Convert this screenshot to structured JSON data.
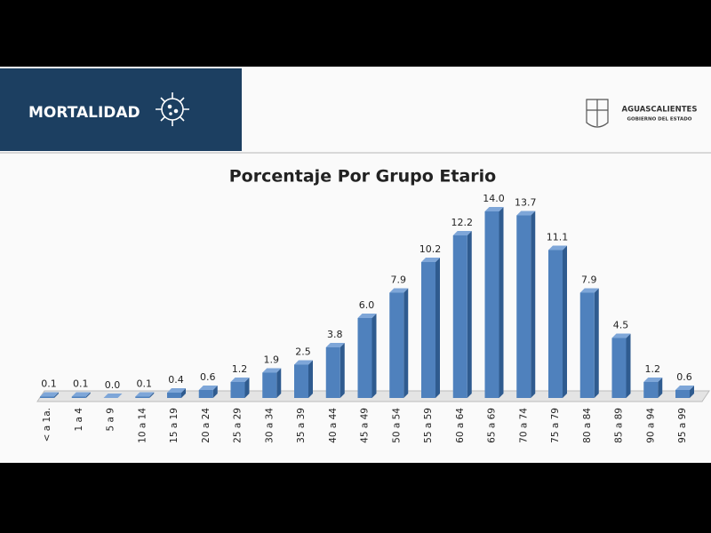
{
  "header": {
    "title": "MORTALIDAD",
    "logo_title": "AGUASCALIENTES",
    "logo_subtitle": "GOBIERNO DEL ESTADO"
  },
  "chart_data": {
    "type": "bar",
    "title": "Porcentaje Por Grupo Etario",
    "categories": [
      "< a 1a.",
      "1 a 4",
      "5 a 9",
      "10 a 14",
      "15 a 19",
      "20 a 24",
      "25 a 29",
      "30 a 34",
      "35 a 39",
      "40 a 44",
      "45 a 49",
      "50 a 54",
      "55 a 59",
      "60 a 64",
      "65 a 69",
      "70 a 74",
      "75 a 79",
      "80 a 84",
      "85 a 89",
      "90 a 94",
      "95 a 99"
    ],
    "values": [
      0.1,
      0.1,
      0.0,
      0.1,
      0.4,
      0.6,
      1.2,
      1.9,
      2.5,
      3.8,
      6.0,
      7.9,
      10.2,
      12.2,
      14.0,
      13.7,
      11.1,
      7.9,
      4.5,
      1.2,
      0.6
    ],
    "value_labels": [
      "0.1",
      "0.1",
      "0.0",
      "0.1",
      "0.4",
      "0.6",
      "1.2",
      "1.9",
      "2.5",
      "3.8",
      "6.0",
      "7.9",
      "10.2",
      "12.2",
      "14.0",
      "13.7",
      "11.1",
      "7.9",
      "4.5",
      "1.2",
      "0.6"
    ],
    "color": "#4f81bd"
  }
}
